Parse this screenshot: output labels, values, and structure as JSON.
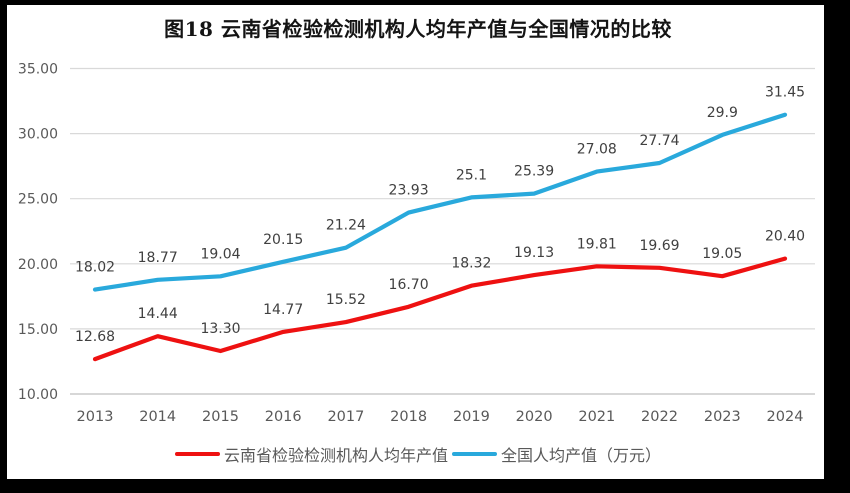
{
  "chart_data": {
    "type": "line",
    "title": "图18  云南省检验检测机构人均年产值与全国情况的比较",
    "categories": [
      "2013",
      "2014",
      "2015",
      "2016",
      "2017",
      "2018",
      "2019",
      "2020",
      "2021",
      "2022",
      "2023",
      "2024"
    ],
    "series": [
      {
        "name": "云南省检验检测机构人均年产值",
        "color": "#ee1111",
        "values": [
          12.68,
          14.44,
          13.3,
          14.77,
          15.52,
          16.7,
          18.32,
          19.13,
          19.81,
          19.69,
          19.05,
          20.4
        ],
        "labels": [
          "12.68",
          "14.44",
          "13.30",
          "14.77",
          "15.52",
          "16.70",
          "18.32",
          "19.13",
          "19.81",
          "19.69",
          "19.05",
          "20.40"
        ]
      },
      {
        "name": "全国人均产值（万元）",
        "color": "#29a9dc",
        "values": [
          18.02,
          18.77,
          19.04,
          20.15,
          21.24,
          23.93,
          25.1,
          25.39,
          27.08,
          27.74,
          29.9,
          31.45
        ],
        "labels": [
          "18.02",
          "18.77",
          "19.04",
          "20.15",
          "21.24",
          "23.93",
          "25.1",
          "25.39",
          "27.08",
          "27.74",
          "29.9",
          "31.45"
        ]
      }
    ],
    "ylim": [
      10,
      35
    ],
    "ytick_step": 5,
    "ytick_labels": [
      "10.00",
      "15.00",
      "20.00",
      "25.00",
      "30.00",
      "35.00"
    ],
    "grid": true,
    "legend_position": "bottom",
    "colors": {
      "gridline": "#d9d9d9",
      "axis_line": "#bfbfbf",
      "axis_text": "#595959",
      "data_label": "#404040",
      "title_text": "#141414",
      "background": "#ffffff",
      "frame": "#000000"
    }
  }
}
